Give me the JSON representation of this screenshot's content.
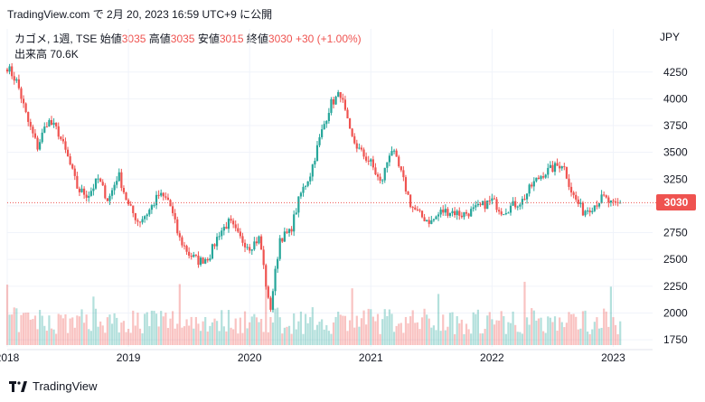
{
  "header": {
    "text": "TradingView.com で 2月 20, 2023 16:59 UTC+9 に公開"
  },
  "legend": {
    "symbol": "カゴメ, 1週, TSE",
    "open_label": "始値",
    "open": "3035",
    "high_label": "高値",
    "high": "3035",
    "low_label": "安値",
    "low": "3015",
    "close_label": "終値",
    "close": "3030",
    "change": "+30 (+1.00%)",
    "volume_label": "出来高",
    "volume": "70.6K",
    "currency": "JPY"
  },
  "price_tag": "3030",
  "footer": {
    "brand": "TradingView"
  },
  "colors": {
    "up": "#26a69a",
    "down": "#ef5350",
    "grid": "#f0f3fa"
  },
  "chart_data": {
    "type": "candlestick",
    "title": "カゴメ, 1週, TSE",
    "y_ticks": [
      1750,
      2000,
      2250,
      2500,
      2750,
      3000,
      3250,
      3500,
      3750,
      4000,
      4250
    ],
    "ylim": [
      1700,
      4400
    ],
    "x_ticks": [
      "2018",
      "2019",
      "2020",
      "2021",
      "2022",
      "2023"
    ],
    "last_price": 3030,
    "grid": true,
    "price_path": [
      [
        "2018-01",
        4300
      ],
      [
        "2018-02",
        4150
      ],
      [
        "2018-03",
        3800
      ],
      [
        "2018-04",
        3550
      ],
      [
        "2018-05",
        3800
      ],
      [
        "2018-06",
        3700
      ],
      [
        "2018-07",
        3450
      ],
      [
        "2018-08",
        3150
      ],
      [
        "2018-09",
        3100
      ],
      [
        "2018-10",
        3250
      ],
      [
        "2018-11",
        3050
      ],
      [
        "2018-12",
        3300
      ],
      [
        "2019-01",
        3000
      ],
      [
        "2019-02",
        2850
      ],
      [
        "2019-03",
        2950
      ],
      [
        "2019-04",
        3100
      ],
      [
        "2019-05",
        3050
      ],
      [
        "2019-06",
        2700
      ],
      [
        "2019-07",
        2550
      ],
      [
        "2019-08",
        2480
      ],
      [
        "2019-09",
        2530
      ],
      [
        "2019-10",
        2750
      ],
      [
        "2019-11",
        2850
      ],
      [
        "2019-12",
        2700
      ],
      [
        "2020-01",
        2620
      ],
      [
        "2020-02",
        2700
      ],
      [
        "2020-03",
        2000
      ],
      [
        "2020-04",
        2700
      ],
      [
        "2020-05",
        2750
      ],
      [
        "2020-06",
        3100
      ],
      [
        "2020-07",
        3300
      ],
      [
        "2020-08",
        3650
      ],
      [
        "2020-09",
        3950
      ],
      [
        "2020-10",
        4050
      ],
      [
        "2020-11",
        3650
      ],
      [
        "2020-12",
        3500
      ],
      [
        "2021-01",
        3400
      ],
      [
        "2021-02",
        3200
      ],
      [
        "2021-03",
        3550
      ],
      [
        "2021-04",
        3300
      ],
      [
        "2021-05",
        3000
      ],
      [
        "2021-06",
        2900
      ],
      [
        "2021-07",
        2850
      ],
      [
        "2021-08",
        2950
      ],
      [
        "2021-09",
        2950
      ],
      [
        "2021-10",
        2920
      ],
      [
        "2021-11",
        2950
      ],
      [
        "2021-12",
        3000
      ],
      [
        "2022-01",
        3050
      ],
      [
        "2022-02",
        2950
      ],
      [
        "2022-03",
        3000
      ],
      [
        "2022-04",
        3050
      ],
      [
        "2022-05",
        3200
      ],
      [
        "2022-06",
        3300
      ],
      [
        "2022-07",
        3350
      ],
      [
        "2022-08",
        3400
      ],
      [
        "2022-09",
        3100
      ],
      [
        "2022-10",
        2950
      ],
      [
        "2022-11",
        3000
      ],
      [
        "2022-12",
        3080
      ],
      [
        "2023-01",
        3000
      ],
      [
        "2023-02",
        3030
      ]
    ]
  }
}
